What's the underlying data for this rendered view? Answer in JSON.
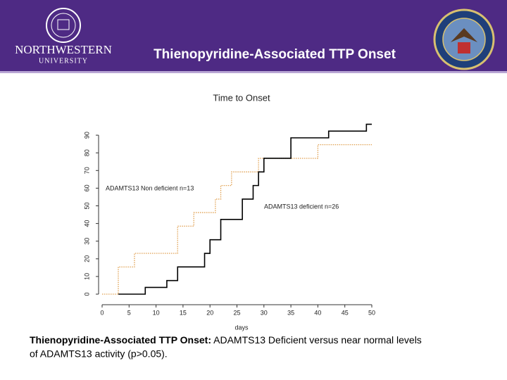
{
  "header": {
    "title": "Thienopyridine-Associated TTP Onset",
    "logo_left": [
      "NORTHWESTERN",
      "UNIVERSITY"
    ]
  },
  "chart_data": {
    "type": "step",
    "title": "Time to Onset",
    "xlabel": "days",
    "xlim": [
      0,
      50
    ],
    "xticks": [
      0,
      5,
      10,
      15,
      20,
      25,
      30,
      35,
      40,
      45,
      50
    ],
    "ylim": [
      0,
      100
    ],
    "yticks": [
      0,
      10,
      20,
      30,
      40,
      50,
      60,
      70,
      80,
      90
    ],
    "series": [
      {
        "name": "ADAMTS13 Non deficient n=13",
        "color": "#e0a050",
        "dash": "dotted",
        "x": [
          0,
          3,
          6,
          14,
          17,
          21,
          22,
          24,
          29,
          40,
          50
        ],
        "values": [
          0,
          15.4,
          23.1,
          38.5,
          46.2,
          53.8,
          61.5,
          69.2,
          76.9,
          84.6,
          84.6
        ]
      },
      {
        "name": "ADAMTS13 deficient n=26",
        "color": "#000000",
        "dash": "solid",
        "x": [
          3,
          8,
          12,
          14,
          19,
          20,
          22,
          26,
          28,
          29,
          30,
          35,
          42,
          49,
          50
        ],
        "values": [
          0,
          3.8,
          7.7,
          15.4,
          23.1,
          30.8,
          42.3,
          53.8,
          61.5,
          69.2,
          76.9,
          88.5,
          92.3,
          96.2,
          96.2
        ]
      }
    ]
  },
  "caption": {
    "bold": "Thienopyridine-Associated TTP Onset:",
    "text": " ADAMTS13 Deficient versus near normal levels",
    "line2": "of ADAMTS13 activity (p>0.05)."
  }
}
